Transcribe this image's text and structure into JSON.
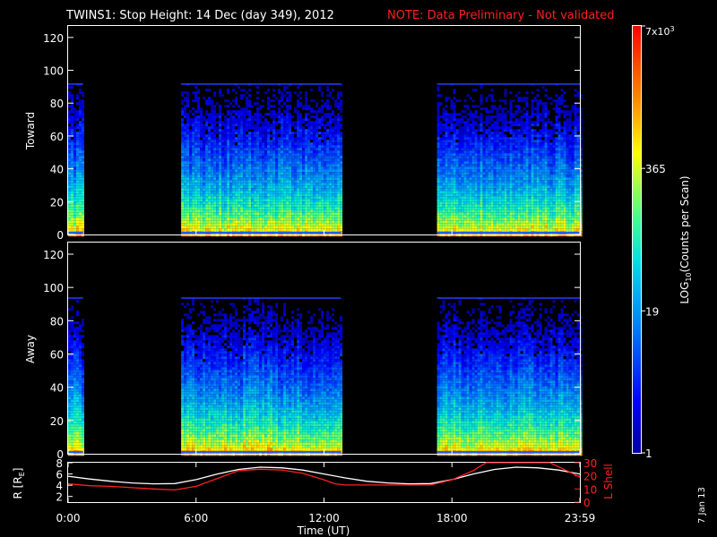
{
  "header": {
    "title": "TWINS1: Stop Height: 14 Dec (day 349), 2012",
    "note": "NOTE: Data Preliminary - Not validated"
  },
  "chart_data": [
    {
      "type": "heatmap",
      "panel": "toward",
      "ylabel": "Toward",
      "ylim": [
        0,
        127
      ],
      "yticks": [
        "0",
        "20",
        "40",
        "60",
        "80",
        "100",
        "120"
      ],
      "data_top": 92,
      "time_blocks_hours": [
        [
          0,
          0.7
        ],
        [
          5.3,
          12.8
        ],
        [
          17.3,
          24
        ]
      ]
    },
    {
      "type": "heatmap",
      "panel": "away",
      "ylabel": "Away",
      "ylim": [
        0,
        127
      ],
      "yticks": [
        "0",
        "20",
        "40",
        "60",
        "80",
        "100",
        "120"
      ],
      "data_top": 94,
      "time_blocks_hours": [
        [
          0,
          0.7
        ],
        [
          5.3,
          12.8
        ],
        [
          17.3,
          24
        ]
      ]
    },
    {
      "type": "line",
      "panel": "orbit",
      "ylabel_left": "R [RE]",
      "ylabel_right": "L Shell",
      "ylim_left": [
        1,
        8
      ],
      "ylim_right": [
        0,
        30
      ],
      "yticks_left": [
        "2",
        "4",
        "6",
        "8"
      ],
      "yticks_right": [
        "0",
        "10",
        "20",
        "30"
      ],
      "xlabel": "Time (UT)",
      "xlim": [
        0,
        24
      ],
      "xticks": [
        "0:00",
        "6:00",
        "12:00",
        "18:00",
        "23:59"
      ],
      "xtick_hours": [
        0,
        6,
        12,
        18,
        24
      ],
      "series": [
        {
          "name": "R",
          "color": "#ffffff",
          "axis": "left",
          "x": [
            0,
            1,
            2,
            3,
            4,
            5,
            6,
            7,
            8,
            9,
            10,
            11,
            12,
            13,
            14,
            15,
            16,
            17,
            18,
            19,
            20,
            21,
            22,
            23,
            24
          ],
          "y": [
            5.6,
            5.1,
            4.7,
            4.4,
            4.25,
            4.3,
            5.0,
            6.0,
            6.8,
            7.2,
            7.1,
            6.7,
            6.0,
            5.3,
            4.7,
            4.4,
            4.25,
            4.3,
            5.0,
            6.0,
            6.8,
            7.2,
            7.1,
            6.7,
            6.0
          ]
        },
        {
          "name": "L Shell",
          "color": "#ff2020",
          "axis": "right",
          "x": [
            0,
            1,
            2,
            3,
            4,
            5,
            6,
            7,
            8,
            9,
            10,
            11,
            12,
            12.5,
            13,
            14,
            15,
            16,
            17,
            18,
            19,
            19.6,
            22.6,
            23,
            24
          ],
          "y": [
            14,
            12.5,
            12,
            11,
            10,
            9.3,
            12,
            18,
            24,
            25,
            24.5,
            22,
            17,
            14,
            13,
            13,
            13,
            13,
            13,
            17,
            24,
            31,
            31,
            27,
            19
          ]
        }
      ]
    }
  ],
  "colorbar": {
    "label": "LOG10(Counts per Scan)",
    "label_base": "LOG",
    "label_sub": "10",
    "label_rest": "(Counts per Scan)",
    "ticks": [
      "1",
      "19",
      "365",
      "7x10^3"
    ],
    "tick_top_base": "7x10",
    "tick_top_exp": "3",
    "tick_values_log": [
      0,
      1.2788,
      2.5623,
      3.8451
    ],
    "log_max": 3.8451
  },
  "footer": {
    "date_stamp": "7 Jan 13"
  },
  "colors": {
    "background": "#000000",
    "axes": "#ffffff",
    "note": "#ff2020",
    "r_line": "#ffffff",
    "l_line": "#ff2020"
  }
}
